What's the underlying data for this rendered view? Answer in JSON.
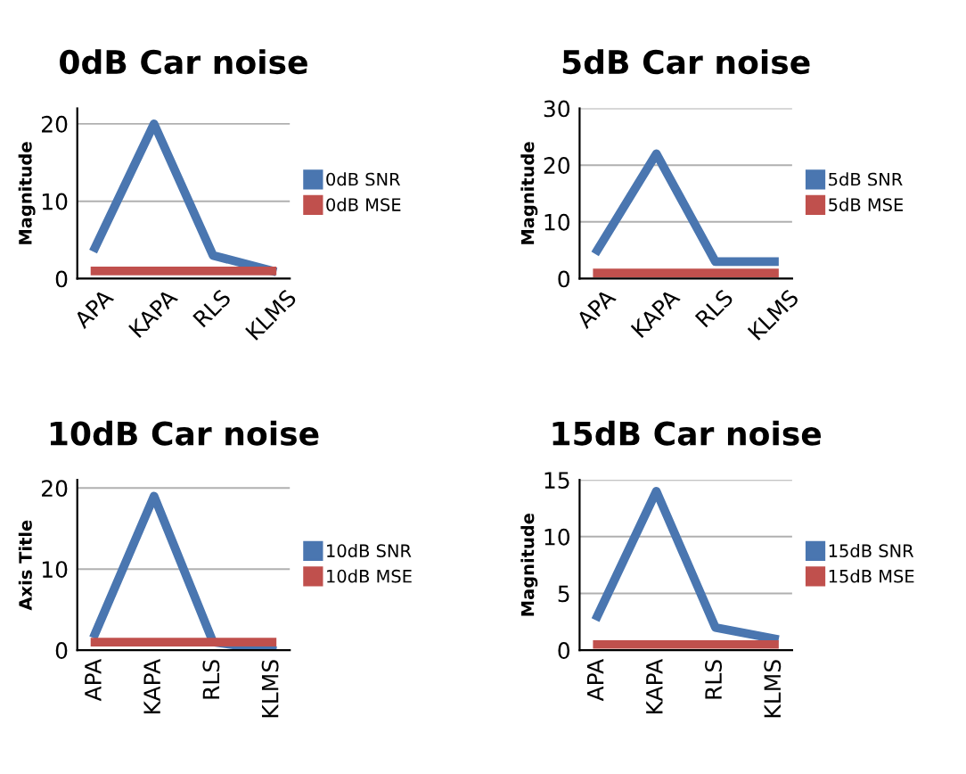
{
  "chart_data": [
    {
      "type": "line",
      "title": "0dB Car noise",
      "ylabel": "Magnitude",
      "categories": [
        "APA",
        "KAPA",
        "RLS",
        "KLMS"
      ],
      "series": [
        {
          "name": "0dB SNR",
          "color": "#4a76b0",
          "values": [
            4,
            20,
            3,
            1
          ]
        },
        {
          "name": "0dB MSE",
          "color": "#c0504d",
          "values": [
            1,
            1,
            1,
            1
          ]
        }
      ],
      "ylim": [
        0,
        22
      ],
      "yticks": [
        0,
        10,
        20
      ],
      "grid": "y",
      "legend": "right",
      "marker": "none",
      "line_style": "solid"
    },
    {
      "type": "line",
      "title": "5dB Car noise",
      "ylabel": "Magnitude",
      "categories": [
        "APA",
        "KAPA",
        "RLS",
        "KLMS"
      ],
      "series": [
        {
          "name": "5dB SNR",
          "color": "#4a76b0",
          "values": [
            5,
            22,
            3,
            3
          ]
        },
        {
          "name": "5dB MSE",
          "color": "#c0504d",
          "values": [
            1,
            1,
            1,
            1
          ]
        }
      ],
      "ylim": [
        0,
        30
      ],
      "yticks": [
        0,
        10,
        20,
        30
      ],
      "grid": "y",
      "legend": "right",
      "marker": "none",
      "line_style": "solid"
    },
    {
      "type": "line",
      "title": "10dB Car noise",
      "ylabel": "Axis Title",
      "categories": [
        "APA",
        "KAPA",
        "RLS",
        "KLMS"
      ],
      "series": [
        {
          "name": "10dB SNR",
          "color": "#4a76b0",
          "values": [
            2,
            19,
            1,
            0
          ]
        },
        {
          "name": "10dB MSE",
          "color": "#c0504d",
          "values": [
            1,
            1,
            1,
            1
          ]
        }
      ],
      "ylim": [
        0,
        21
      ],
      "yticks": [
        0,
        10,
        20
      ],
      "grid": "y",
      "legend": "right",
      "marker": "none",
      "line_style": "solid"
    },
    {
      "type": "line",
      "title": "15dB Car noise",
      "ylabel": "Magnitude",
      "categories": [
        "APA",
        "KAPA",
        "RLS",
        "KLMS"
      ],
      "series": [
        {
          "name": "15dB SNR",
          "color": "#4a76b0",
          "values": [
            3,
            14,
            2,
            1
          ]
        },
        {
          "name": "15dB MSE",
          "color": "#c0504d",
          "values": [
            0.5,
            0.5,
            0.5,
            0.5
          ]
        }
      ],
      "ylim": [
        0,
        15
      ],
      "yticks": [
        0,
        5,
        10,
        15
      ],
      "grid": "y",
      "legend": "right",
      "marker": "none",
      "line_style": "solid"
    }
  ]
}
